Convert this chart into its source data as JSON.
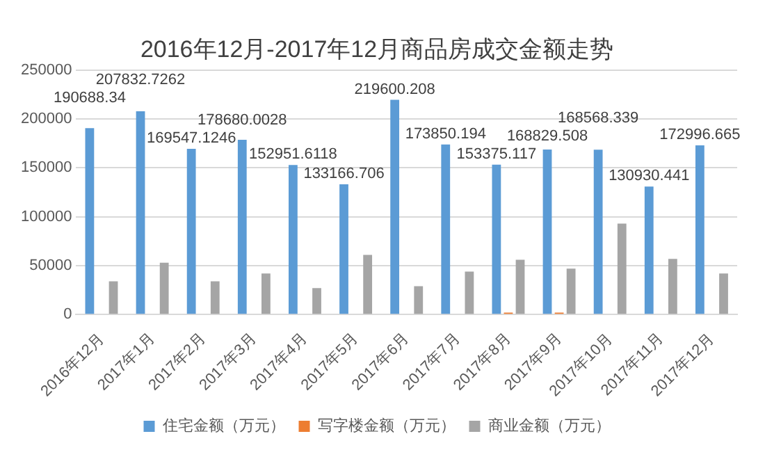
{
  "chart_data": {
    "type": "bar",
    "title": "2016年12月-2017年12月商品房成交金额走势",
    "categories": [
      "2016年12月",
      "2017年1月",
      "2017年2月",
      "2017年3月",
      "2017年4月",
      "2017年5月",
      "2017年6月",
      "2017年7月",
      "2017年8月",
      "2017年9月",
      "2017年10月",
      "2017年11月",
      "2017年12月"
    ],
    "series": [
      {
        "name": "住宅金额（万元）",
        "color": "#5b9bd5",
        "values": [
          190688.34,
          207832.7262,
          169547.1246,
          178680.0028,
          152951.6118,
          133166.706,
          219600.208,
          173850.194,
          153375.117,
          168829.508,
          168568.339,
          130930.441,
          172996.665
        ],
        "value_labels": [
          "190688.34",
          "207832.7262",
          "169547.1246",
          "178680.0028",
          "152951.6118",
          "133166.706",
          "219600.208",
          "173850.194",
          "153375.117",
          "168829.508",
          "168568.339",
          "130930.441",
          "172996.665"
        ]
      },
      {
        "name": "写字楼金额（万元）",
        "color": "#ed7d31",
        "values": [
          0,
          0,
          0,
          0,
          0,
          0,
          0,
          0,
          2000,
          2000,
          0,
          0,
          0
        ]
      },
      {
        "name": "商业金额（万元）",
        "color": "#a5a5a5",
        "values": [
          34000,
          53000,
          34000,
          42000,
          27000,
          61000,
          29000,
          44000,
          56000,
          47000,
          93000,
          57000,
          42000
        ]
      }
    ],
    "ylim": [
      0,
      250000
    ],
    "yticks": [
      0,
      50000,
      100000,
      150000,
      200000,
      250000
    ],
    "grid": "y",
    "legend": "bottom"
  }
}
